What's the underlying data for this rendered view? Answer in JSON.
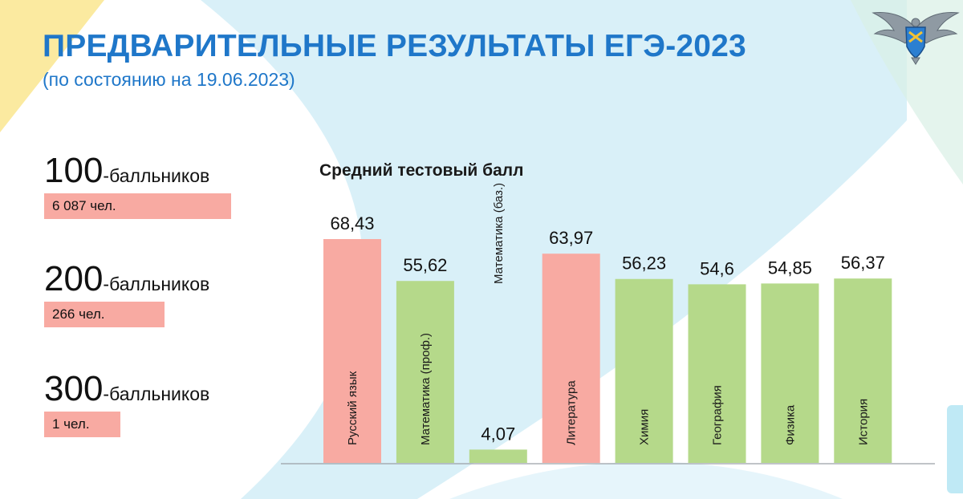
{
  "header": {
    "title": "ПРЕДВАРИТЕЛЬНЫЕ РЕЗУЛЬТАТЫ ЕГЭ-2023",
    "subtitle": "(по состоянию на 19.06.2023)"
  },
  "logo": {
    "icon": "eagle-emblem-icon"
  },
  "stats": [
    {
      "number": "100",
      "suffix": "-балльников",
      "value": "6 087 чел."
    },
    {
      "number": "200",
      "suffix": "-балльников",
      "value": "266 чел."
    },
    {
      "number": "300",
      "suffix": "-балльников",
      "value": "1 чел."
    }
  ],
  "colors": {
    "accent_blue": "#1f77c9",
    "bar_pink": "#f8aaa2",
    "bar_green": "#b5d98a"
  },
  "chart_data": {
    "type": "bar",
    "title": "Средний тестовый балл",
    "xlabel": "",
    "ylabel": "",
    "ylim": [
      0,
      68.43
    ],
    "grid": false,
    "legend": "none",
    "categories": [
      "Русский язык",
      "Математика (проф.)",
      "Математика (баз.)",
      "Литература",
      "Химия",
      "География",
      "Физика",
      "История"
    ],
    "values": [
      68.43,
      55.62,
      4.07,
      63.97,
      56.23,
      54.6,
      54.85,
      56.37
    ],
    "value_labels": [
      "68,43",
      "55,62",
      "4,07",
      "63,97",
      "56,23",
      "54,6",
      "54,85",
      "56,37"
    ],
    "bar_colors": [
      "#f8aaa2",
      "#b5d98a",
      "#b5d98a",
      "#f8aaa2",
      "#b5d98a",
      "#b5d98a",
      "#b5d98a",
      "#b5d98a"
    ]
  }
}
